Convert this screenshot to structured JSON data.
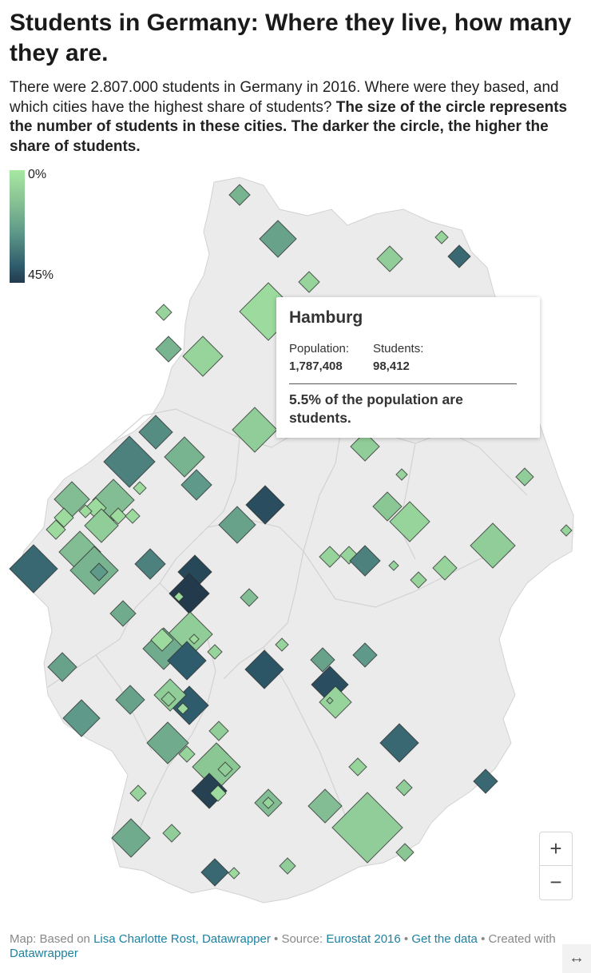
{
  "title": "Students in Germany: Where they live, how many they are.",
  "intro": {
    "plain": "There were 2.807.000 students in Germany in 2016. Where were they based, and which cities have the highest share of students?",
    "bold": "The size of the circle represents the number of students in these cities. The darker the circle, the higher the share of students."
  },
  "legend": {
    "min_label": "0%",
    "max_label": "45%",
    "colors": [
      "#a7e8a3",
      "#223a4c"
    ]
  },
  "tooltip": {
    "city": "Hamburg",
    "population_label": "Population:",
    "population_value": "1,787,408",
    "students_label": "Students:",
    "students_value": "98,412",
    "share_text": "5.5% of the population are students."
  },
  "zoom": {
    "in_label": "+",
    "out_label": "−"
  },
  "footer": {
    "map_prefix": "Map: Based on",
    "map_link": "Lisa Charlotte Rost, Datawrapper",
    "source_prefix": "• Source:",
    "source_link": "Eurostat 2016",
    "sep": "•",
    "data_link": "Get the data",
    "created_prefix": "• Created with",
    "created_link": "Datawrapper"
  },
  "expand_icon": "↔",
  "colors": {
    "land": "#ebebeb",
    "border": "#d2d2d2",
    "marker_stroke": "#2b2b2b"
  }
}
